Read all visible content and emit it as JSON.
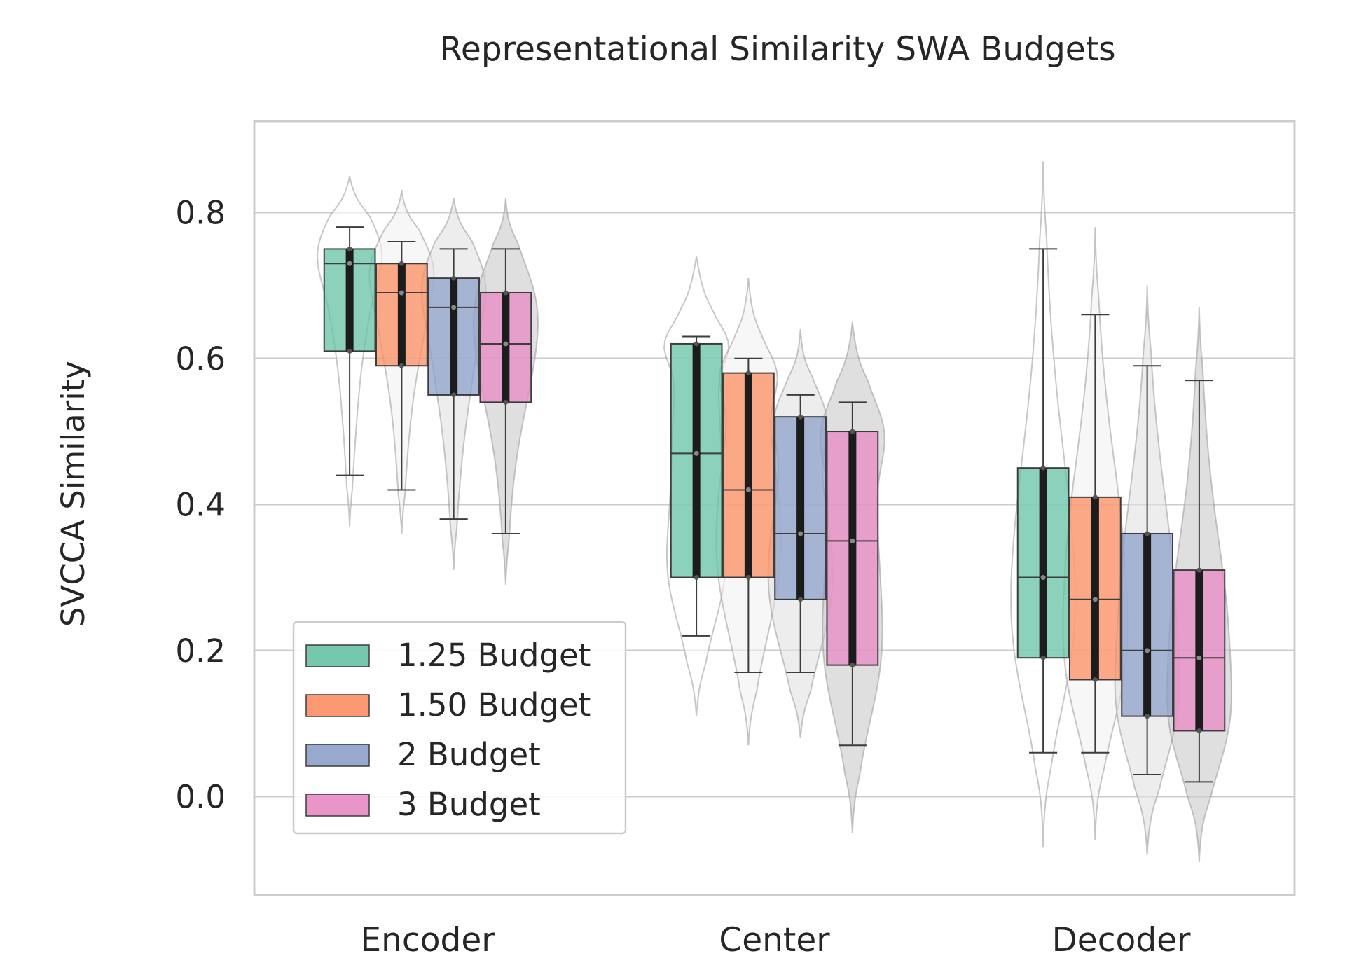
{
  "chart_data": {
    "type": "box",
    "title": "Representational Similarity SWA Budgets",
    "xlabel": "",
    "ylabel": "SVCCA Similarity",
    "ylim": [
      -0.135,
      0.925
    ],
    "yticks": [
      0.0,
      0.2,
      0.4,
      0.6,
      0.8
    ],
    "ytick_labels": [
      "0.0",
      "0.2",
      "0.4",
      "0.6",
      "0.8"
    ],
    "grid": true,
    "legend_position": "lower-left",
    "categories": [
      "Encoder",
      "Center",
      "Decoder"
    ],
    "series": [
      {
        "name": "1.25 Budget",
        "color": "#66c2a5",
        "violin_color": "#ffffff",
        "stats": [
          {
            "min": 0.44,
            "q1": 0.61,
            "median": 0.73,
            "q3": 0.75,
            "max": 0.78,
            "kde_min": 0.37,
            "kde_max": 0.85
          },
          {
            "min": 0.22,
            "q1": 0.3,
            "median": 0.47,
            "q3": 0.62,
            "max": 0.63,
            "kde_min": 0.11,
            "kde_max": 0.74
          },
          {
            "min": 0.06,
            "q1": 0.19,
            "median": 0.3,
            "q3": 0.45,
            "max": 0.75,
            "kde_min": -0.07,
            "kde_max": 0.87
          }
        ]
      },
      {
        "name": "1.50 Budget",
        "color": "#fc8d62",
        "violin_color": "#f2f2f2",
        "stats": [
          {
            "min": 0.42,
            "q1": 0.59,
            "median": 0.69,
            "q3": 0.73,
            "max": 0.76,
            "kde_min": 0.36,
            "kde_max": 0.83
          },
          {
            "min": 0.17,
            "q1": 0.3,
            "median": 0.42,
            "q3": 0.58,
            "max": 0.6,
            "kde_min": 0.07,
            "kde_max": 0.71
          },
          {
            "min": 0.06,
            "q1": 0.16,
            "median": 0.27,
            "q3": 0.41,
            "max": 0.66,
            "kde_min": -0.06,
            "kde_max": 0.78
          }
        ]
      },
      {
        "name": "2 Budget",
        "color": "#8da0cb",
        "violin_color": "#e1e1e1",
        "stats": [
          {
            "min": 0.38,
            "q1": 0.55,
            "median": 0.67,
            "q3": 0.71,
            "max": 0.75,
            "kde_min": 0.31,
            "kde_max": 0.82
          },
          {
            "min": 0.17,
            "q1": 0.27,
            "median": 0.36,
            "q3": 0.52,
            "max": 0.55,
            "kde_min": 0.08,
            "kde_max": 0.64
          },
          {
            "min": 0.03,
            "q1": 0.11,
            "median": 0.2,
            "q3": 0.36,
            "max": 0.59,
            "kde_min": -0.08,
            "kde_max": 0.7
          }
        ]
      },
      {
        "name": "3 Budget",
        "color": "#e78ac3",
        "violin_color": "#c9c9c9",
        "stats": [
          {
            "min": 0.36,
            "q1": 0.54,
            "median": 0.62,
            "q3": 0.69,
            "max": 0.75,
            "kde_min": 0.29,
            "kde_max": 0.82
          },
          {
            "min": 0.07,
            "q1": 0.18,
            "median": 0.35,
            "q3": 0.5,
            "max": 0.54,
            "kde_min": -0.05,
            "kde_max": 0.65
          },
          {
            "min": 0.02,
            "q1": 0.09,
            "median": 0.19,
            "q3": 0.31,
            "max": 0.57,
            "kde_min": -0.09,
            "kde_max": 0.67
          }
        ]
      }
    ]
  }
}
